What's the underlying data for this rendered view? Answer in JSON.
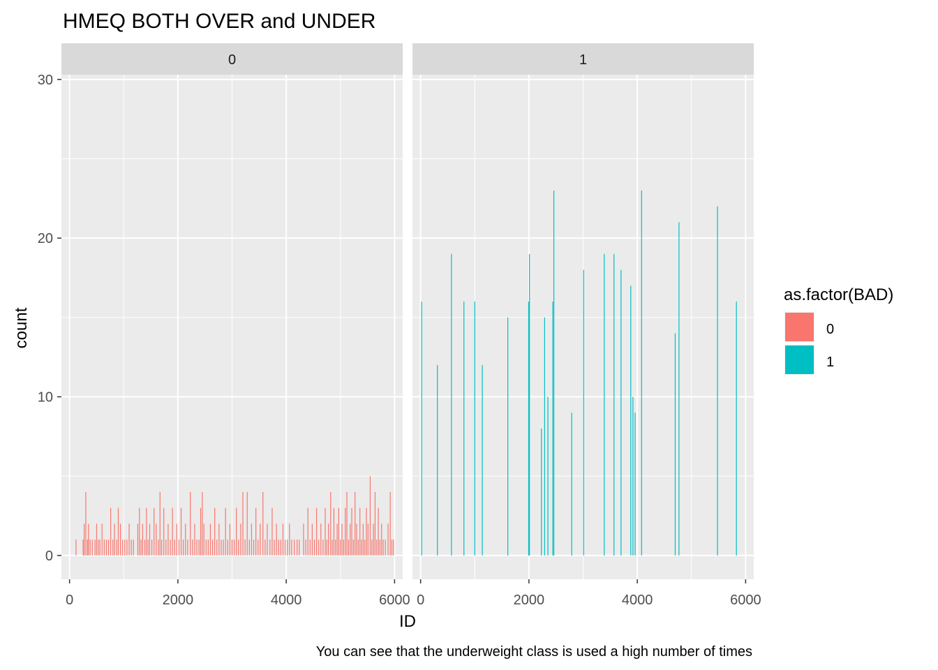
{
  "chart_data": {
    "type": "bar",
    "title": "HMEQ BOTH OVER and UNDER",
    "caption": "You can see that the underweight class is used a high number of times",
    "xlabel": "ID",
    "ylabel": "count",
    "xlim": [
      -150,
      6150
    ],
    "ylim": [
      -1.5,
      30.3
    ],
    "x_ticks": [
      0,
      2000,
      4000,
      6000
    ],
    "y_ticks": [
      0,
      10,
      20,
      30
    ],
    "grid": true,
    "facet_var": "BAD",
    "legend": {
      "title": "as.factor(BAD)",
      "position": "right",
      "items": [
        {
          "label": "0",
          "color": "#F8766D"
        },
        {
          "label": "1",
          "color": "#00BFC4"
        }
      ]
    },
    "panels": [
      {
        "strip": "0",
        "series": "0",
        "color": "#F8766D",
        "bars": [
          {
            "x": 120,
            "y": 1
          },
          {
            "x": 250,
            "y": 1
          },
          {
            "x": 270,
            "y": 2
          },
          {
            "x": 300,
            "y": 4
          },
          {
            "x": 330,
            "y": 1
          },
          {
            "x": 350,
            "y": 2
          },
          {
            "x": 380,
            "y": 1
          },
          {
            "x": 420,
            "y": 1
          },
          {
            "x": 470,
            "y": 1
          },
          {
            "x": 500,
            "y": 2
          },
          {
            "x": 530,
            "y": 1
          },
          {
            "x": 560,
            "y": 1
          },
          {
            "x": 600,
            "y": 2
          },
          {
            "x": 640,
            "y": 1
          },
          {
            "x": 680,
            "y": 1
          },
          {
            "x": 720,
            "y": 1
          },
          {
            "x": 760,
            "y": 3
          },
          {
            "x": 800,
            "y": 1
          },
          {
            "x": 830,
            "y": 2
          },
          {
            "x": 870,
            "y": 1
          },
          {
            "x": 900,
            "y": 3
          },
          {
            "x": 940,
            "y": 2
          },
          {
            "x": 980,
            "y": 1
          },
          {
            "x": 1020,
            "y": 1
          },
          {
            "x": 1060,
            "y": 1
          },
          {
            "x": 1100,
            "y": 2
          },
          {
            "x": 1140,
            "y": 1
          },
          {
            "x": 1180,
            "y": 1
          },
          {
            "x": 1260,
            "y": 2
          },
          {
            "x": 1290,
            "y": 3
          },
          {
            "x": 1320,
            "y": 1
          },
          {
            "x": 1350,
            "y": 2
          },
          {
            "x": 1390,
            "y": 1
          },
          {
            "x": 1420,
            "y": 3
          },
          {
            "x": 1450,
            "y": 1
          },
          {
            "x": 1480,
            "y": 2
          },
          {
            "x": 1520,
            "y": 1
          },
          {
            "x": 1560,
            "y": 3
          },
          {
            "x": 1600,
            "y": 2
          },
          {
            "x": 1640,
            "y": 1
          },
          {
            "x": 1670,
            "y": 4
          },
          {
            "x": 1700,
            "y": 1
          },
          {
            "x": 1740,
            "y": 3
          },
          {
            "x": 1780,
            "y": 1
          },
          {
            "x": 1820,
            "y": 2
          },
          {
            "x": 1860,
            "y": 1
          },
          {
            "x": 1900,
            "y": 3
          },
          {
            "x": 1940,
            "y": 1
          },
          {
            "x": 1980,
            "y": 2
          },
          {
            "x": 2020,
            "y": 1
          },
          {
            "x": 2060,
            "y": 3
          },
          {
            "x": 2100,
            "y": 1
          },
          {
            "x": 2140,
            "y": 2
          },
          {
            "x": 2180,
            "y": 1
          },
          {
            "x": 2230,
            "y": 4
          },
          {
            "x": 2270,
            "y": 1
          },
          {
            "x": 2310,
            "y": 2
          },
          {
            "x": 2350,
            "y": 1
          },
          {
            "x": 2390,
            "y": 1
          },
          {
            "x": 2420,
            "y": 3
          },
          {
            "x": 2450,
            "y": 4
          },
          {
            "x": 2480,
            "y": 2
          },
          {
            "x": 2520,
            "y": 1
          },
          {
            "x": 2560,
            "y": 1
          },
          {
            "x": 2600,
            "y": 2
          },
          {
            "x": 2640,
            "y": 1
          },
          {
            "x": 2680,
            "y": 3
          },
          {
            "x": 2720,
            "y": 1
          },
          {
            "x": 2760,
            "y": 2
          },
          {
            "x": 2800,
            "y": 1
          },
          {
            "x": 2840,
            "y": 1
          },
          {
            "x": 2880,
            "y": 3
          },
          {
            "x": 2920,
            "y": 1
          },
          {
            "x": 2960,
            "y": 2
          },
          {
            "x": 3000,
            "y": 1
          },
          {
            "x": 3040,
            "y": 1
          },
          {
            "x": 3080,
            "y": 3
          },
          {
            "x": 3120,
            "y": 1
          },
          {
            "x": 3160,
            "y": 2
          },
          {
            "x": 3200,
            "y": 4
          },
          {
            "x": 3240,
            "y": 1
          },
          {
            "x": 3280,
            "y": 4
          },
          {
            "x": 3320,
            "y": 1
          },
          {
            "x": 3360,
            "y": 2
          },
          {
            "x": 3400,
            "y": 1
          },
          {
            "x": 3440,
            "y": 3
          },
          {
            "x": 3480,
            "y": 1
          },
          {
            "x": 3520,
            "y": 2
          },
          {
            "x": 3570,
            "y": 4
          },
          {
            "x": 3610,
            "y": 1
          },
          {
            "x": 3650,
            "y": 2
          },
          {
            "x": 3700,
            "y": 1
          },
          {
            "x": 3740,
            "y": 3
          },
          {
            "x": 3780,
            "y": 1
          },
          {
            "x": 3820,
            "y": 2
          },
          {
            "x": 3860,
            "y": 1
          },
          {
            "x": 3900,
            "y": 1
          },
          {
            "x": 3940,
            "y": 2
          },
          {
            "x": 3980,
            "y": 1
          },
          {
            "x": 4020,
            "y": 1
          },
          {
            "x": 4060,
            "y": 2
          },
          {
            "x": 4100,
            "y": 1
          },
          {
            "x": 4150,
            "y": 1
          },
          {
            "x": 4200,
            "y": 1
          },
          {
            "x": 4240,
            "y": 1
          },
          {
            "x": 4320,
            "y": 2
          },
          {
            "x": 4360,
            "y": 1
          },
          {
            "x": 4400,
            "y": 3
          },
          {
            "x": 4440,
            "y": 1
          },
          {
            "x": 4480,
            "y": 2
          },
          {
            "x": 4520,
            "y": 1
          },
          {
            "x": 4560,
            "y": 3
          },
          {
            "x": 4600,
            "y": 1
          },
          {
            "x": 4640,
            "y": 2
          },
          {
            "x": 4680,
            "y": 1
          },
          {
            "x": 4720,
            "y": 3
          },
          {
            "x": 4750,
            "y": 1
          },
          {
            "x": 4780,
            "y": 2
          },
          {
            "x": 4820,
            "y": 4
          },
          {
            "x": 4850,
            "y": 1
          },
          {
            "x": 4880,
            "y": 3
          },
          {
            "x": 4910,
            "y": 1
          },
          {
            "x": 4940,
            "y": 2
          },
          {
            "x": 4970,
            "y": 3
          },
          {
            "x": 5000,
            "y": 1
          },
          {
            "x": 5030,
            "y": 2
          },
          {
            "x": 5060,
            "y": 1
          },
          {
            "x": 5090,
            "y": 3
          },
          {
            "x": 5120,
            "y": 4
          },
          {
            "x": 5150,
            "y": 1
          },
          {
            "x": 5180,
            "y": 2
          },
          {
            "x": 5210,
            "y": 3
          },
          {
            "x": 5240,
            "y": 1
          },
          {
            "x": 5270,
            "y": 4
          },
          {
            "x": 5300,
            "y": 2
          },
          {
            "x": 5330,
            "y": 1
          },
          {
            "x": 5360,
            "y": 3
          },
          {
            "x": 5390,
            "y": 1
          },
          {
            "x": 5420,
            "y": 2
          },
          {
            "x": 5450,
            "y": 1
          },
          {
            "x": 5480,
            "y": 3
          },
          {
            "x": 5510,
            "y": 2
          },
          {
            "x": 5550,
            "y": 5
          },
          {
            "x": 5580,
            "y": 1
          },
          {
            "x": 5610,
            "y": 2
          },
          {
            "x": 5640,
            "y": 4
          },
          {
            "x": 5670,
            "y": 1
          },
          {
            "x": 5700,
            "y": 3
          },
          {
            "x": 5730,
            "y": 1
          },
          {
            "x": 5760,
            "y": 2
          },
          {
            "x": 5790,
            "y": 1
          },
          {
            "x": 5830,
            "y": 1
          },
          {
            "x": 5880,
            "y": 2
          },
          {
            "x": 5920,
            "y": 4
          },
          {
            "x": 5950,
            "y": 1
          },
          {
            "x": 5980,
            "y": 1
          }
        ]
      },
      {
        "strip": "1",
        "series": "1",
        "color": "#00BFC4",
        "bars": [
          {
            "x": 20,
            "y": 16
          },
          {
            "x": 310,
            "y": 12
          },
          {
            "x": 570,
            "y": 19
          },
          {
            "x": 800,
            "y": 16
          },
          {
            "x": 1000,
            "y": 16
          },
          {
            "x": 1140,
            "y": 12
          },
          {
            "x": 1610,
            "y": 15
          },
          {
            "x": 1995,
            "y": 16
          },
          {
            "x": 2010,
            "y": 19
          },
          {
            "x": 2230,
            "y": 8
          },
          {
            "x": 2290,
            "y": 15
          },
          {
            "x": 2350,
            "y": 10
          },
          {
            "x": 2440,
            "y": 16
          },
          {
            "x": 2460,
            "y": 23
          },
          {
            "x": 2790,
            "y": 9
          },
          {
            "x": 3010,
            "y": 18
          },
          {
            "x": 3390,
            "y": 19
          },
          {
            "x": 3570,
            "y": 19
          },
          {
            "x": 3700,
            "y": 18
          },
          {
            "x": 3880,
            "y": 17
          },
          {
            "x": 3920,
            "y": 10
          },
          {
            "x": 3960,
            "y": 9
          },
          {
            "x": 4080,
            "y": 23
          },
          {
            "x": 4700,
            "y": 14
          },
          {
            "x": 4770,
            "y": 21
          },
          {
            "x": 5480,
            "y": 22
          },
          {
            "x": 5830,
            "y": 16
          }
        ]
      }
    ]
  }
}
